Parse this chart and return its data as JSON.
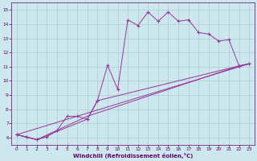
{
  "background_color": "#cce8ee",
  "grid_color": "#aacccc",
  "line_color": "#993399",
  "xlabel": "Windchill (Refroidissement éolien,°C)",
  "xlabel_color": "#660066",
  "tick_color": "#660066",
  "spine_color": "#660066",
  "ylim": [
    5.5,
    15.5
  ],
  "xlim": [
    -0.5,
    23.5
  ],
  "yticks": [
    6,
    7,
    8,
    9,
    10,
    11,
    12,
    13,
    14,
    15
  ],
  "xticks": [
    0,
    1,
    2,
    3,
    4,
    5,
    6,
    7,
    8,
    9,
    10,
    11,
    12,
    13,
    14,
    15,
    16,
    17,
    18,
    19,
    20,
    21,
    22,
    23
  ],
  "line1_x": [
    0,
    1,
    2,
    3,
    4,
    5,
    6,
    7,
    8,
    9,
    10,
    11,
    12,
    13,
    14,
    15,
    16,
    17,
    18,
    19,
    20,
    21,
    22,
    23
  ],
  "line1_y": [
    6.2,
    6.05,
    5.85,
    6.05,
    6.5,
    7.5,
    7.5,
    7.3,
    8.6,
    11.1,
    9.4,
    14.3,
    13.9,
    14.85,
    14.2,
    14.85,
    14.2,
    14.3,
    13.4,
    13.3,
    12.8,
    12.9,
    11.05,
    11.2
  ],
  "line2_x": [
    0,
    2,
    7,
    8,
    22,
    23
  ],
  "line2_y": [
    6.2,
    5.85,
    7.3,
    8.6,
    11.05,
    11.2
  ],
  "line3_x": [
    0,
    2,
    7,
    22,
    23
  ],
  "line3_y": [
    6.2,
    5.85,
    7.5,
    11.05,
    11.2
  ],
  "line4_x": [
    0,
    23
  ],
  "line4_y": [
    6.2,
    11.2
  ]
}
